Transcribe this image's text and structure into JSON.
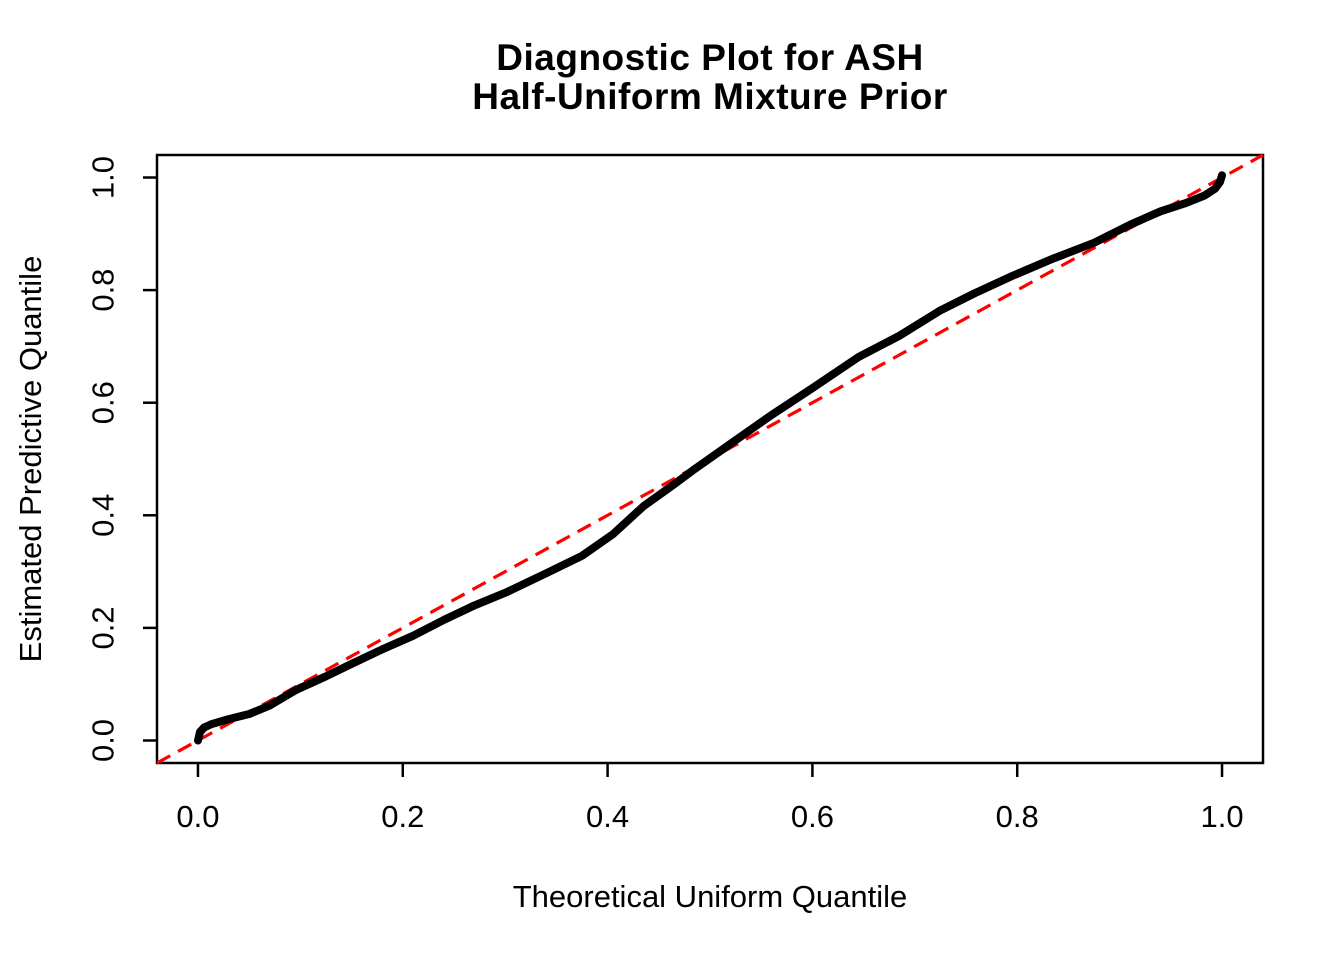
{
  "title": {
    "line1": "Diagnostic Plot for ASH",
    "line2": "Half-Uniform Mixture Prior"
  },
  "chart_data": {
    "type": "line",
    "title": "Diagnostic Plot for ASH\nHalf-Uniform Mixture Prior",
    "title_lines": [
      "Diagnostic Plot for ASH",
      "Half-Uniform Mixture Prior"
    ],
    "xlabel": "Theoretical Uniform Quantile",
    "ylabel": "Estimated Predictive Quantile",
    "xlim": [
      -0.04,
      1.04
    ],
    "ylim": [
      -0.04,
      1.04
    ],
    "grid": false,
    "frame": true,
    "legend": "none",
    "axis_color": "#000000",
    "x_ticks": [
      0.0,
      0.2,
      0.4,
      0.6,
      0.8,
      1.0
    ],
    "x_tick_labels": [
      "0.0",
      "0.2",
      "0.4",
      "0.6",
      "0.8",
      "1.0"
    ],
    "y_ticks": [
      0.0,
      0.2,
      0.4,
      0.6,
      0.8,
      1.0
    ],
    "y_tick_labels": [
      "0.0",
      "0.2",
      "0.4",
      "0.6",
      "0.8",
      "1.0"
    ],
    "series": [
      {
        "name": "estimated-vs-theoretical-quantile-curve",
        "color": "#000000",
        "style": "solid",
        "width": 8,
        "layer": 2,
        "points": [
          [
            0.0,
            0.0
          ],
          [
            0.002,
            0.015
          ],
          [
            0.006,
            0.023
          ],
          [
            0.013,
            0.029
          ],
          [
            0.03,
            0.038
          ],
          [
            0.05,
            0.047
          ],
          [
            0.07,
            0.062
          ],
          [
            0.096,
            0.09
          ],
          [
            0.125,
            0.114
          ],
          [
            0.15,
            0.136
          ],
          [
            0.18,
            0.162
          ],
          [
            0.21,
            0.186
          ],
          [
            0.24,
            0.214
          ],
          [
            0.27,
            0.24
          ],
          [
            0.302,
            0.264
          ],
          [
            0.34,
            0.297
          ],
          [
            0.375,
            0.328
          ],
          [
            0.405,
            0.366
          ],
          [
            0.435,
            0.416
          ],
          [
            0.465,
            0.455
          ],
          [
            0.485,
            0.482
          ],
          [
            0.52,
            0.527
          ],
          [
            0.56,
            0.578
          ],
          [
            0.6,
            0.626
          ],
          [
            0.645,
            0.681
          ],
          [
            0.685,
            0.719
          ],
          [
            0.725,
            0.764
          ],
          [
            0.758,
            0.794
          ],
          [
            0.795,
            0.825
          ],
          [
            0.835,
            0.856
          ],
          [
            0.875,
            0.884
          ],
          [
            0.91,
            0.916
          ],
          [
            0.94,
            0.94
          ],
          [
            0.965,
            0.955
          ],
          [
            0.983,
            0.968
          ],
          [
            0.993,
            0.98
          ],
          [
            0.998,
            0.992
          ],
          [
            1.0,
            1.004
          ]
        ]
      },
      {
        "name": "identity-reference-line",
        "color": "#FF0000",
        "style": "dashed",
        "width": 3.2,
        "layer": 1,
        "points": [
          [
            -0.04,
            -0.04
          ],
          [
            1.04,
            1.04
          ]
        ]
      }
    ]
  }
}
